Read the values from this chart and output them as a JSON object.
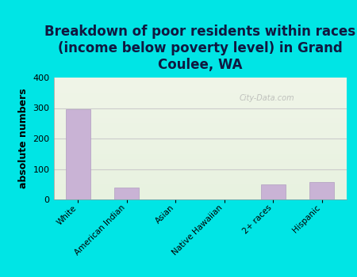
{
  "title": "Breakdown of poor residents within races\n(income below poverty level) in Grand\nCoulee, WA",
  "categories": [
    "White",
    "American Indian",
    "Asian",
    "Native Hawaiian",
    "2+ races",
    "Hispanic"
  ],
  "values": [
    295,
    40,
    0,
    0,
    50,
    58
  ],
  "bar_color": "#c9b3d5",
  "bar_edge_color": "#b09dc0",
  "background_color": "#00e5e5",
  "plot_bg_top": "#f0f5e8",
  "plot_bg_bottom": "#e8f2e0",
  "ylabel": "absolute numbers",
  "ylim": [
    0,
    400
  ],
  "yticks": [
    0,
    100,
    200,
    300,
    400
  ],
  "title_fontsize": 12,
  "ylabel_fontsize": 9,
  "watermark": "City-Data.com",
  "title_color": "#101840"
}
